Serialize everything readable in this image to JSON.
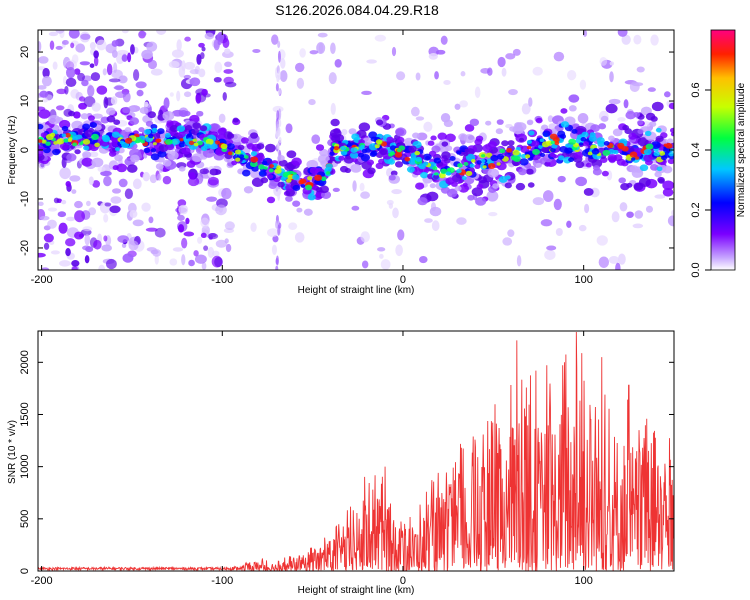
{
  "title": "S126.2026.084.04.29.R18",
  "chart_data": [
    {
      "type": "heatmap",
      "name": "spectrogram",
      "xlabel": "Height of straight line (km)",
      "ylabel": "Frequency (Hz)",
      "xlim": [
        -202,
        150
      ],
      "ylim": [
        -24.5,
        24.5
      ],
      "xticks": [
        -200,
        -100,
        0,
        100
      ],
      "yticks": [
        -20,
        -10,
        0,
        10,
        20
      ],
      "ridge": {
        "x": [
          -202,
          -180,
          -160,
          -140,
          -120,
          -100,
          -90,
          -80,
          -70,
          -60,
          -50,
          -42,
          -38,
          -30,
          -20,
          -12,
          -8,
          0,
          10,
          20,
          40,
          60,
          80,
          100,
          120,
          150
        ],
        "freq": [
          2,
          2,
          2,
          2,
          2,
          1,
          -1,
          -3,
          -4,
          -6,
          -7,
          -5,
          1,
          0,
          0,
          2,
          -1,
          0,
          -2,
          -4,
          -3,
          -1,
          1,
          1,
          0,
          0
        ]
      },
      "colorbar": {
        "label": "Normalized spectral amplitude",
        "range": [
          0.0,
          0.8
        ],
        "ticks": [
          "0.0",
          "0.2",
          "0.4",
          "0.6"
        ]
      }
    },
    {
      "type": "line",
      "name": "snr",
      "xlabel": "Height of straight line (km)",
      "ylabel": "SNR (10 * v/v)",
      "xlim": [
        -202,
        150
      ],
      "ylim": [
        0,
        2300
      ],
      "xticks": [
        -200,
        -100,
        0,
        100
      ],
      "yticks": [
        0,
        500,
        1000,
        1500,
        2000
      ],
      "color": "#ee3333",
      "envelope": {
        "x": [
          -202,
          -150,
          -100,
          -90,
          -80,
          -70,
          -60,
          -50,
          -40,
          -30,
          -20,
          -10,
          0,
          10,
          20,
          40,
          60,
          80,
          100,
          120,
          150
        ],
        "max": [
          40,
          45,
          40,
          60,
          130,
          110,
          160,
          250,
          400,
          600,
          950,
          900,
          500,
          700,
          1000,
          1400,
          1800,
          2000,
          2250,
          1800,
          1300
        ]
      },
      "peaks": [
        {
          "x": -10,
          "value": 1000
        },
        {
          "x": 63,
          "value": 2210
        },
        {
          "x": 96,
          "value": 2290
        },
        {
          "x": 110,
          "value": 2050
        },
        {
          "x": 125,
          "value": 1780
        }
      ]
    }
  ]
}
